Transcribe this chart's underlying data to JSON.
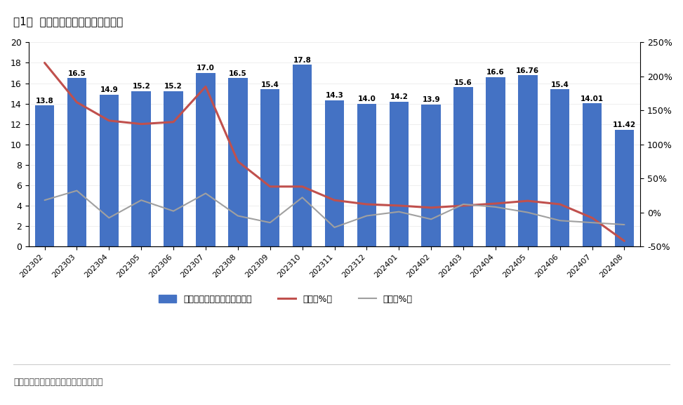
{
  "title": "图1：  美国组件进口金额（亿美元）",
  "source_text": "数据来源：美国海关，东吴证券研究所",
  "categories": [
    "202302",
    "202303",
    "202304",
    "202305",
    "202306",
    "202307",
    "202308",
    "202309",
    "202310",
    "202311",
    "202312",
    "202401",
    "202402",
    "202403",
    "202404",
    "202405",
    "202406",
    "202407",
    "202408"
  ],
  "bar_values": [
    13.8,
    16.5,
    14.9,
    15.2,
    15.2,
    17.0,
    16.5,
    15.4,
    17.8,
    14.3,
    14.0,
    14.2,
    13.9,
    15.6,
    16.6,
    16.76,
    15.4,
    14.01,
    11.42
  ],
  "yoy_values": [
    220,
    162,
    135,
    130,
    133,
    185,
    75,
    38,
    38,
    18,
    12,
    10,
    7,
    10,
    13,
    17,
    12,
    -8,
    -42
  ],
  "mom_values": [
    18,
    32,
    -8,
    18,
    2,
    28,
    -5,
    -15,
    22,
    -22,
    -5,
    1,
    -10,
    12,
    8,
    0,
    -12,
    -15,
    -18
  ],
  "bar_color": "#4472C4",
  "yoy_color": "#C0504D",
  "mom_color": "#A0A0A0",
  "ylim_left": [
    0,
    20
  ],
  "ylim_right": [
    -50,
    250
  ],
  "yticks_left": [
    0,
    2,
    4,
    6,
    8,
    10,
    12,
    14,
    16,
    18,
    20
  ],
  "yticks_right": [
    -50,
    0,
    50,
    100,
    150,
    200,
    250
  ],
  "legend_labels": [
    "光伏组件进口金额（亿美元）",
    "同比（%）",
    "环比（%）"
  ],
  "background_color": "#FFFFFF",
  "plot_area_color": "#FFFFFF",
  "figsize": [
    9.73,
    5.77
  ],
  "dpi": 100,
  "bar_label_fontsize": 7.5,
  "axis_fontsize": 9,
  "title_fontsize": 11,
  "source_fontsize": 9
}
